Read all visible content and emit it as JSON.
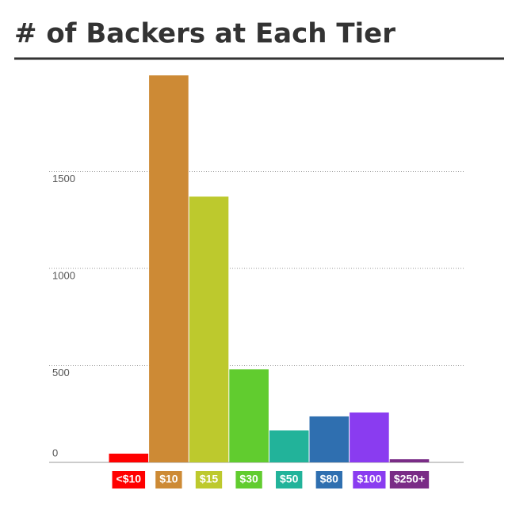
{
  "chart_data": {
    "type": "bar",
    "title": "# of Backers at Each Tier",
    "categories": [
      "<$10",
      "$10",
      "$15",
      "$30",
      "$50",
      "$80",
      "$100",
      "$250+"
    ],
    "values": [
      45,
      1995,
      1370,
      480,
      165,
      237,
      257,
      16
    ],
    "colors": [
      "#ff0000",
      "#cd8a35",
      "#bdc92d",
      "#61cc2f",
      "#22b39a",
      "#2f6fb0",
      "#8a3cf0",
      "#7a2c86"
    ],
    "ylim": [
      0,
      2000
    ],
    "yticks": [
      0,
      500,
      1000,
      1500
    ],
    "grid": true
  }
}
